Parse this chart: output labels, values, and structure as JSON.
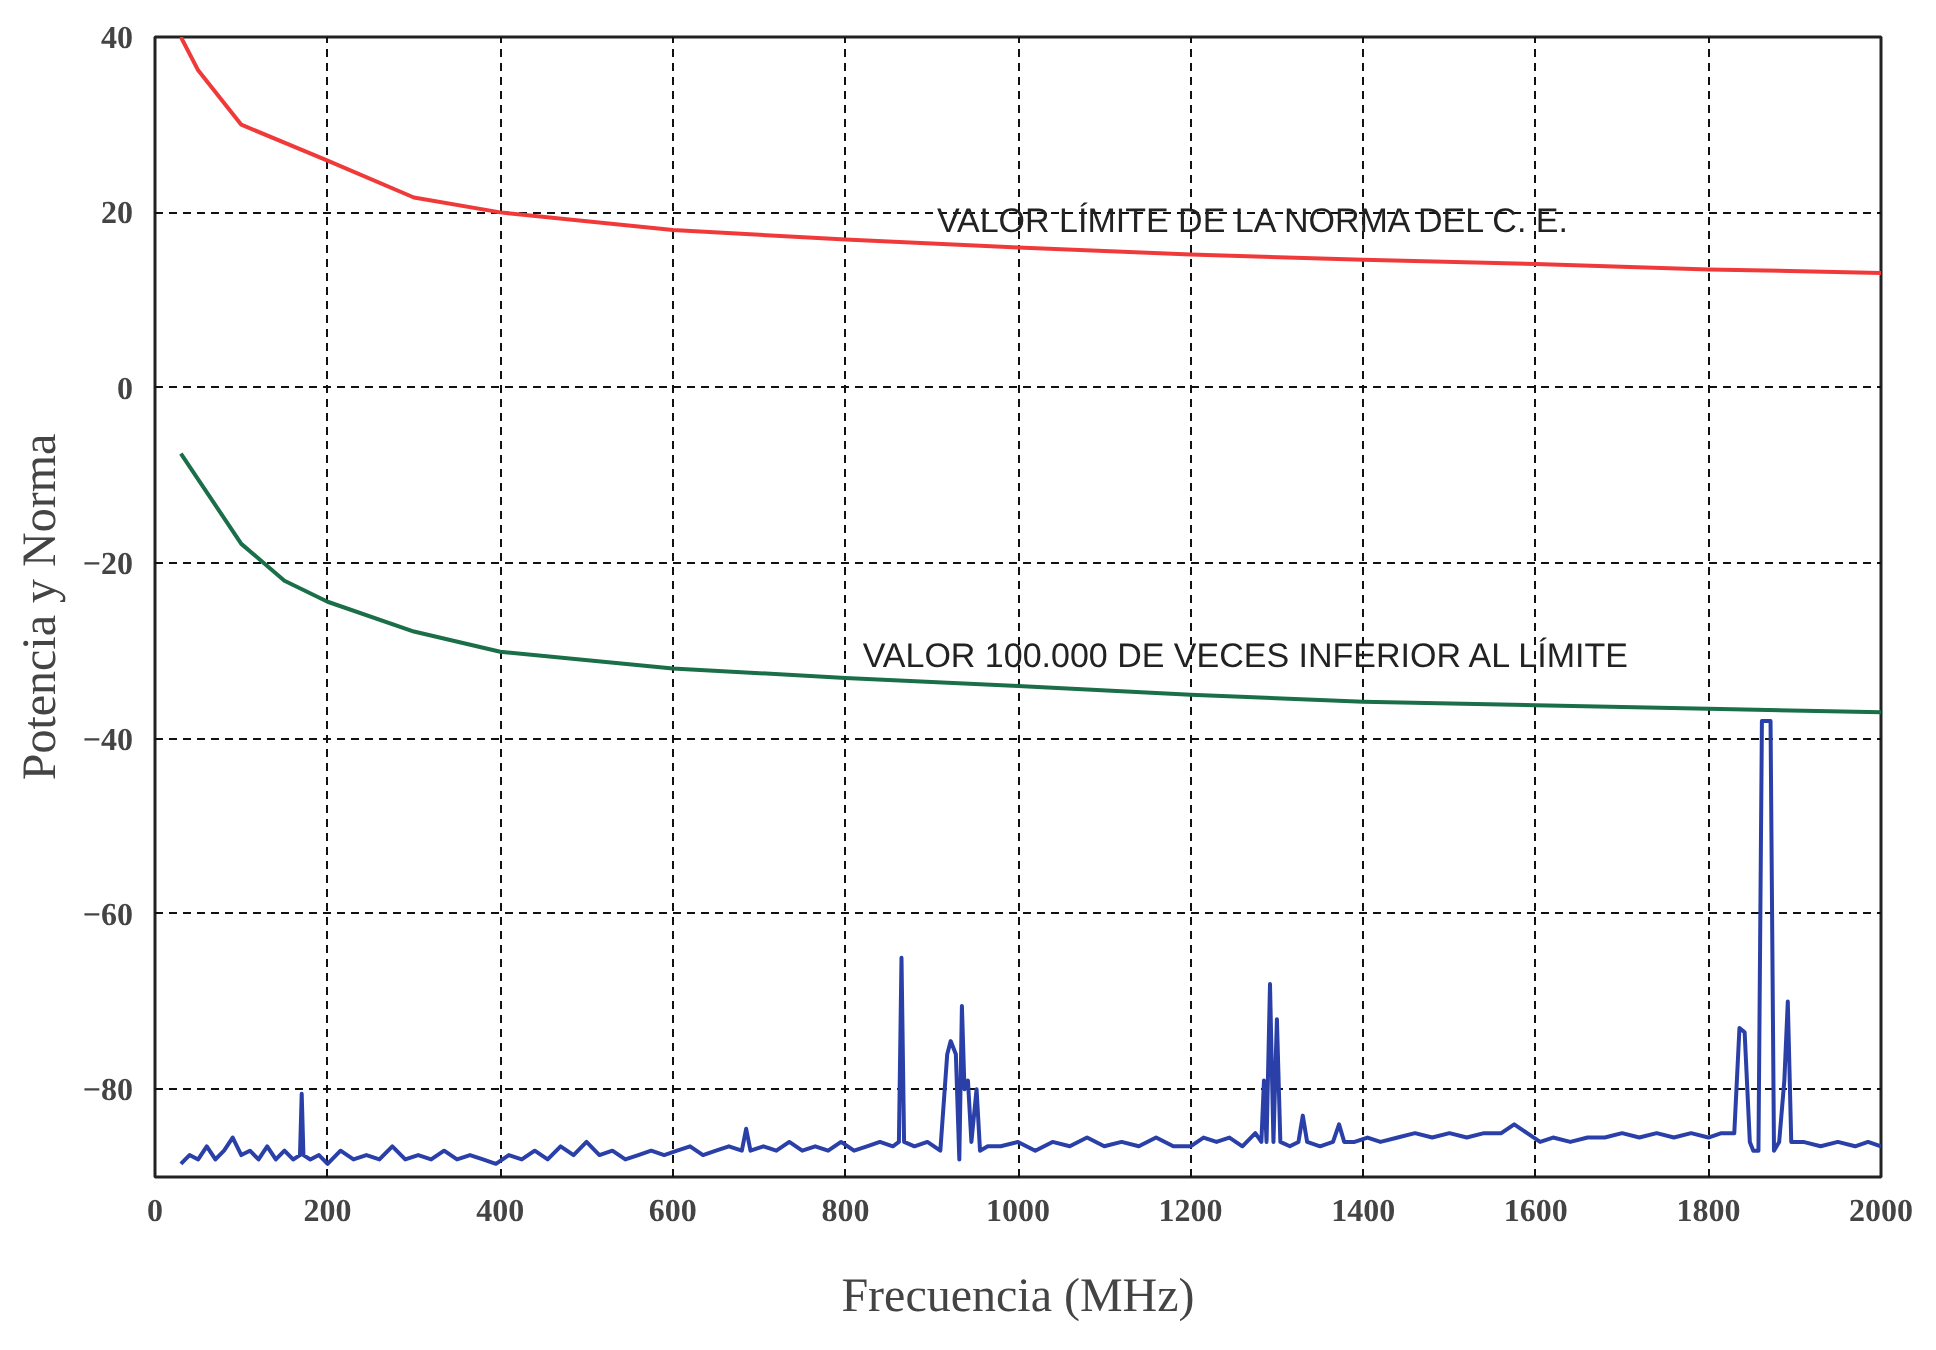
{
  "chart_data": {
    "type": "line",
    "xlabel": "Frecuencia (MHz)",
    "ylabel": "Potencia y Norma",
    "xlim": [
      0,
      2000
    ],
    "ylim": [
      -90,
      40
    ],
    "xticks": [
      0,
      200,
      400,
      600,
      800,
      1000,
      1200,
      1400,
      1600,
      1800,
      2000
    ],
    "yticks": [
      -80,
      -60,
      -40,
      -20,
      0,
      20,
      40
    ],
    "grid": true,
    "line_style": "solid",
    "series": [
      {
        "name": "VALOR LÍMITE DE LA NORMA DEL C. E.",
        "color": "#f03a3a",
        "x": [
          30,
          50,
          100,
          200,
          300,
          400,
          600,
          800,
          1000,
          1200,
          1400,
          1600,
          1800,
          2000
        ],
        "values": [
          40,
          36.2,
          30,
          25.9,
          21.7,
          20,
          18,
          16.9,
          16,
          15.2,
          14.6,
          14.1,
          13.5,
          13.1
        ]
      },
      {
        "name": "VALOR 100.000 DE VECES INFERIOR AL LÍMITE",
        "color": "#1a6e48",
        "x": [
          30,
          100,
          150,
          200,
          300,
          400,
          600,
          800,
          1000,
          1200,
          1400,
          1600,
          1800,
          2000
        ],
        "values": [
          -7.5,
          -17.8,
          -22,
          -24.4,
          -27.8,
          -30.1,
          -32,
          -33.1,
          -34,
          -35,
          -35.8,
          -36.2,
          -36.6,
          -37
        ]
      },
      {
        "color": "#2a40a8",
        "x": [
          30,
          40,
          50,
          60,
          70,
          80,
          90,
          100,
          110,
          120,
          130,
          140,
          150,
          160,
          168,
          170,
          172,
          180,
          190,
          200,
          215,
          230,
          245,
          260,
          275,
          290,
          305,
          320,
          335,
          350,
          365,
          380,
          395,
          410,
          425,
          440,
          455,
          470,
          485,
          500,
          515,
          530,
          545,
          560,
          575,
          590,
          605,
          620,
          635,
          650,
          665,
          680,
          685,
          690,
          705,
          720,
          735,
          750,
          765,
          780,
          795,
          810,
          825,
          840,
          855,
          862,
          865,
          868,
          880,
          895,
          910,
          918,
          922,
          928,
          932,
          935,
          938,
          942,
          946,
          952,
          956,
          965,
          980,
          1000,
          1020,
          1040,
          1060,
          1080,
          1100,
          1120,
          1140,
          1160,
          1180,
          1200,
          1215,
          1230,
          1245,
          1260,
          1275,
          1282,
          1285,
          1288,
          1292,
          1296,
          1300,
          1304,
          1315,
          1325,
          1330,
          1335,
          1350,
          1365,
          1372,
          1378,
          1390,
          1405,
          1420,
          1440,
          1460,
          1480,
          1500,
          1520,
          1540,
          1560,
          1575,
          1590,
          1605,
          1620,
          1640,
          1660,
          1680,
          1700,
          1720,
          1740,
          1760,
          1780,
          1800,
          1815,
          1830,
          1836,
          1842,
          1848,
          1852,
          1858,
          1862,
          1872,
          1876,
          1882,
          1888,
          1892,
          1896,
          1910,
          1930,
          1950,
          1970,
          1985,
          2000
        ],
        "values": [
          -88.5,
          -87.5,
          -88,
          -86.5,
          -88,
          -87,
          -85.5,
          -87.5,
          -87,
          -88,
          -86.5,
          -88,
          -87,
          -88,
          -87.5,
          -80.5,
          -87.5,
          -88,
          -87.5,
          -88.5,
          -87,
          -88,
          -87.5,
          -88,
          -86.5,
          -88,
          -87.5,
          -88,
          -87,
          -88,
          -87.5,
          -88,
          -88.5,
          -87.5,
          -88,
          -87,
          -88,
          -86.5,
          -87.5,
          -86,
          -87.5,
          -87,
          -88,
          -87.5,
          -87,
          -87.5,
          -87,
          -86.5,
          -87.5,
          -87,
          -86.5,
          -87,
          -84.5,
          -87,
          -86.5,
          -87,
          -86,
          -87,
          -86.5,
          -87,
          -86,
          -87,
          -86.5,
          -86,
          -86.5,
          -86,
          -65,
          -86,
          -86.5,
          -86,
          -87,
          -76,
          -74.5,
          -76,
          -88,
          -70.5,
          -80,
          -79,
          -86,
          -80,
          -87,
          -86.5,
          -86.5,
          -86,
          -87,
          -86,
          -86.5,
          -85.5,
          -86.5,
          -86,
          -86.5,
          -85.5,
          -86.5,
          -86.5,
          -85.5,
          -86,
          -85.5,
          -86.5,
          -85,
          -86,
          -79,
          -86,
          -68,
          -86,
          -72,
          -86,
          -86.5,
          -86,
          -83,
          -86,
          -86.5,
          -86,
          -84,
          -86,
          -86,
          -85.5,
          -86,
          -85.5,
          -85,
          -85.5,
          -85,
          -85.5,
          -85,
          -85,
          -84,
          -85,
          -86,
          -85.5,
          -86,
          -85.5,
          -85.5,
          -85,
          -85.5,
          -85,
          -85.5,
          -85,
          -85.5,
          -85,
          -85,
          -73,
          -73.5,
          -86,
          -87,
          -87,
          -38,
          -38,
          -87,
          -86,
          -79,
          -70,
          -86,
          -86,
          -86.5,
          -86,
          -86.5,
          -86,
          -86.5
        ]
      }
    ]
  }
}
